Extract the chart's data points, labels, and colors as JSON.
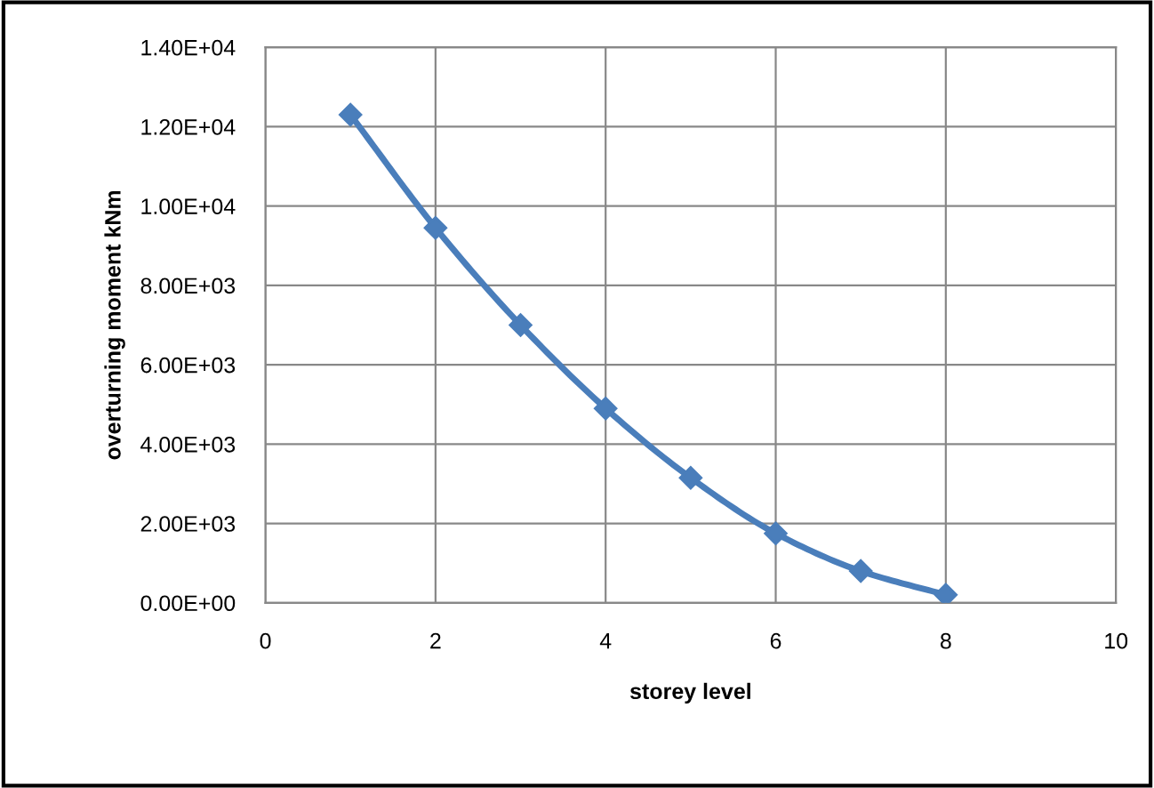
{
  "chart_data": {
    "type": "line",
    "xlabel": "storey level",
    "ylabel": "overturning moment kNm",
    "x": [
      1,
      2,
      3,
      4,
      5,
      6,
      7,
      8
    ],
    "series": [
      {
        "color": "#4a7ebb",
        "values": [
          12300,
          9450,
          7000,
          4900,
          3150,
          1750,
          800,
          200
        ]
      }
    ],
    "xlim": [
      0,
      10
    ],
    "xticks": [
      0,
      2,
      4,
      6,
      8,
      10
    ],
    "ylim": [
      0,
      14000
    ],
    "yticks": [
      {
        "value": 0,
        "label": "0.00E+00"
      },
      {
        "value": 2000,
        "label": "2.00E+03"
      },
      {
        "value": 4000,
        "label": "4.00E+03"
      },
      {
        "value": 6000,
        "label": "6.00E+03"
      },
      {
        "value": 8000,
        "label": "8.00E+03"
      },
      {
        "value": 10000,
        "label": "1.00E+04"
      },
      {
        "value": 12000,
        "label": "1.20E+04"
      },
      {
        "value": 14000,
        "label": "1.40E+04"
      }
    ],
    "grid": true,
    "marker": "diamond",
    "line_style": "solid"
  }
}
